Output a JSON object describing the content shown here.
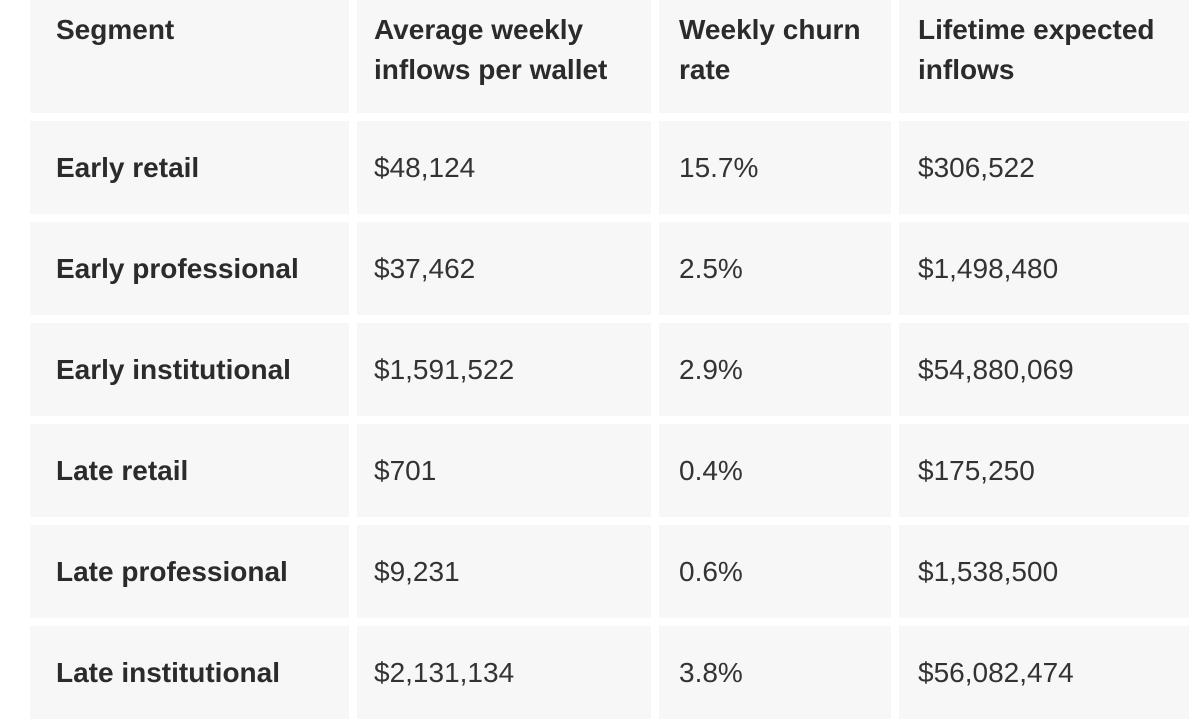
{
  "table": {
    "columns": [
      {
        "label": "Segment"
      },
      {
        "label": "Average weekly inflows per wallet"
      },
      {
        "label": "Weekly churn rate"
      },
      {
        "label": "Lifetime expected inflows"
      }
    ],
    "rows": [
      {
        "segment": "Early retail",
        "avg_weekly_inflows": "$48,124",
        "weekly_churn_rate": "15.7%",
        "lifetime_expected_inflows": "$306,522"
      },
      {
        "segment": "Early professional",
        "avg_weekly_inflows": "$37,462",
        "weekly_churn_rate": "2.5%",
        "lifetime_expected_inflows": "$1,498,480"
      },
      {
        "segment": "Early institutional",
        "avg_weekly_inflows": "$1,591,522",
        "weekly_churn_rate": "2.9%",
        "lifetime_expected_inflows": "$54,880,069"
      },
      {
        "segment": "Late retail",
        "avg_weekly_inflows": "$701",
        "weekly_churn_rate": "0.4%",
        "lifetime_expected_inflows": "$175,250"
      },
      {
        "segment": "Late professional",
        "avg_weekly_inflows": "$9,231",
        "weekly_churn_rate": "0.6%",
        "lifetime_expected_inflows": "$1,538,500"
      },
      {
        "segment": "Late institutional",
        "avg_weekly_inflows": "$2,131,134",
        "weekly_churn_rate": "3.8%",
        "lifetime_expected_inflows": "$56,082,474"
      }
    ]
  },
  "colors": {
    "cell_bg": "#f7f7f7",
    "gap_color": "#ffffff",
    "text_strong": "#2b2b2b",
    "text_normal": "#333333"
  },
  "chart_data": {
    "type": "table",
    "title": "",
    "columns": [
      "Segment",
      "Average weekly inflows per wallet",
      "Weekly churn rate",
      "Lifetime expected inflows"
    ],
    "rows": [
      [
        "Early retail",
        48124,
        0.157,
        306522
      ],
      [
        "Early professional",
        37462,
        0.025,
        1498480
      ],
      [
        "Early institutional",
        1591522,
        0.029,
        54880069
      ],
      [
        "Late retail",
        701,
        0.004,
        175250
      ],
      [
        "Late professional",
        9231,
        0.006,
        1538500
      ],
      [
        "Late institutional",
        2131134,
        0.038,
        56082474
      ]
    ]
  }
}
